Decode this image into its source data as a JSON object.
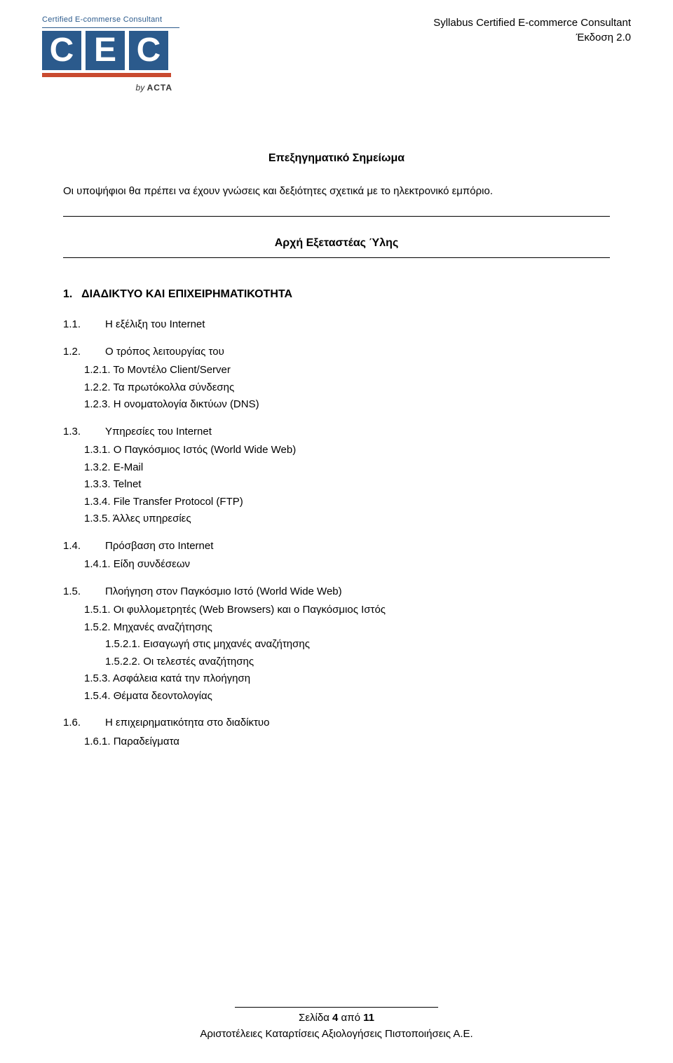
{
  "header": {
    "logo_caption": "Certified E-commerse Consultant",
    "letters": [
      "C",
      "E",
      "C"
    ],
    "by_text": "by ",
    "acta_text": "ACTA",
    "right_line1": "Syllabus  Certified E-commerce Consultant",
    "right_line2": "Έκδοση 2.0"
  },
  "explanatory": {
    "title": "Επεξηγηματικό Σημείωμα",
    "body": "Οι υποψήφιοι θα πρέπει να έχουν γνώσεις και δεξιότητες σχετικά με το ηλεκτρονικό εμπόριο."
  },
  "start_title": "Αρχή Εξεταστέας Ύλης",
  "chapter": {
    "num": "1.",
    "title": "ΔΙΑΔΙΚΤΥΟ ΚΑΙ ΕΠΙΧΕΙΡΗΜΑΤΙΚΟΤΗΤΑ"
  },
  "items": {
    "i11_num": "1.1.",
    "i11_txt": "Η εξέλιξη του Internet",
    "i12_num": "1.2.",
    "i12_txt": "Ο τρόπος λειτουργίας του",
    "i121": "1.2.1. Το Μοντέλο Client/Server",
    "i122": "1.2.2. Τα πρωτόκολλα σύνδεσης",
    "i123": "1.2.3. Η ονοματολογία δικτύων  (DNS)",
    "i13_num": "1.3.",
    "i13_txt": "Υπηρεσίες του Internet",
    "i131": "1.3.1. Ο Παγκόσμιος Ιστός (World Wide Web)",
    "i132": "1.3.2. E-Mail",
    "i133": "1.3.3. Telnet",
    "i134": "1.3.4. File Transfer Protocol (FTP)",
    "i135": "1.3.5. Άλλες υπηρεσίες",
    "i14_num": "1.4.",
    "i14_txt": "Πρόσβαση στο Internet",
    "i141": "1.4.1. Είδη συνδέσεων",
    "i15_num": "1.5.",
    "i15_txt": "Πλοήγηση στον Παγκόσμιο Ιστό (World Wide Web)",
    "i151": "1.5.1. Οι φυλλομετρητές (Web Browsers) και ο Παγκόσμιος Ιστός",
    "i152": "1.5.2. Μηχανές αναζήτησης",
    "i1521": "1.5.2.1.  Εισαγωγή στις μηχανές αναζήτησης",
    "i1522": "1.5.2.2.  Οι τελεστές αναζήτησης",
    "i153": "1.5.3. Ασφάλεια κατά την πλοήγηση",
    "i154": "1.5.4. Θέματα δεοντολογίας",
    "i16_num": "1.6.",
    "i16_txt": "Η επιχειρηματικότητα στο διαδίκτυο",
    "i161": "1.6.1. Παραδείγματα"
  },
  "footer": {
    "page_label": "Σελίδα ",
    "page_num": "4",
    "page_of": " από ",
    "page_total": "11",
    "org": "Αριστοτέλειες Καταρτίσεις Αξιολογήσεις  Πιστοποιήσεις Α.Ε."
  },
  "colors": {
    "logo_blue": "#2b5a8c",
    "logo_orange": "#c94a2f",
    "text": "#000000",
    "bg": "#ffffff"
  },
  "typography": {
    "body_font": "Verdana",
    "body_size_pt": 11,
    "title_weight": "bold"
  }
}
